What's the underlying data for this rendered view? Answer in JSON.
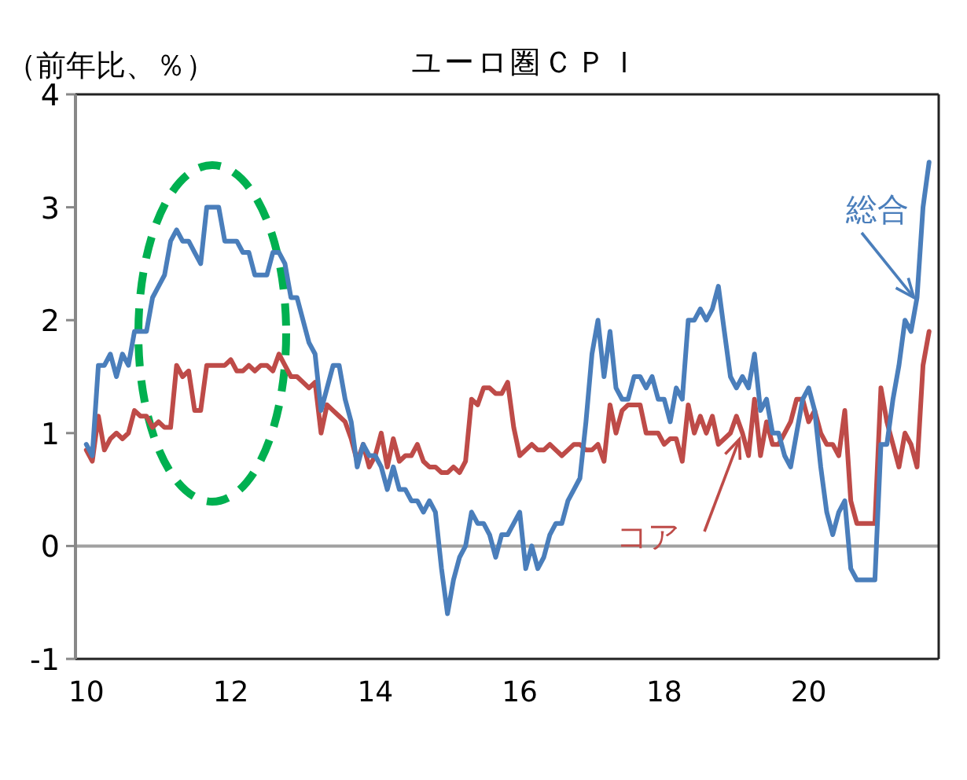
{
  "chart_data": {
    "type": "line",
    "title": "ユーロ圏ＣＰＩ",
    "ylabel": "（前年比、％）",
    "x": [
      10,
      10.083,
      10.167,
      10.25,
      10.333,
      10.417,
      10.5,
      10.583,
      10.667,
      10.75,
      10.833,
      10.917,
      11,
      11.083,
      11.167,
      11.25,
      11.333,
      11.417,
      11.5,
      11.583,
      11.667,
      11.75,
      11.833,
      11.917,
      12,
      12.083,
      12.167,
      12.25,
      12.333,
      12.417,
      12.5,
      12.583,
      12.667,
      12.75,
      12.833,
      12.917,
      13,
      13.083,
      13.167,
      13.25,
      13.333,
      13.417,
      13.5,
      13.583,
      13.667,
      13.75,
      13.833,
      13.917,
      14,
      14.083,
      14.167,
      14.25,
      14.333,
      14.417,
      14.5,
      14.583,
      14.667,
      14.75,
      14.833,
      14.917,
      15,
      15.083,
      15.167,
      15.25,
      15.333,
      15.417,
      15.5,
      15.583,
      15.667,
      15.75,
      15.833,
      15.917,
      16,
      16.083,
      16.167,
      16.25,
      16.333,
      16.417,
      16.5,
      16.583,
      16.667,
      16.75,
      16.833,
      16.917,
      17,
      17.083,
      17.167,
      17.25,
      17.333,
      17.417,
      17.5,
      17.583,
      17.667,
      17.75,
      17.833,
      17.917,
      18,
      18.083,
      18.167,
      18.25,
      18.333,
      18.417,
      18.5,
      18.583,
      18.667,
      18.75,
      18.833,
      18.917,
      19,
      19.083,
      19.167,
      19.25,
      19.333,
      19.417,
      19.5,
      19.583,
      19.667,
      19.75,
      19.833,
      19.917,
      20,
      20.083,
      20.167,
      20.25,
      20.333,
      20.417,
      20.5,
      20.583,
      20.667,
      20.75,
      20.833,
      20.917,
      21,
      21.083,
      21.167,
      21.25,
      21.333,
      21.417,
      21.5,
      21.583,
      21.667
    ],
    "series": [
      {
        "name": "総合",
        "color": "#4a7ebb",
        "values": [
          0.9,
          0.8,
          1.6,
          1.6,
          1.7,
          1.5,
          1.7,
          1.6,
          1.9,
          1.9,
          1.9,
          2.2,
          2.3,
          2.4,
          2.7,
          2.8,
          2.7,
          2.7,
          2.6,
          2.5,
          3.0,
          3.0,
          3.0,
          2.7,
          2.7,
          2.7,
          2.6,
          2.6,
          2.4,
          2.4,
          2.4,
          2.6,
          2.6,
          2.5,
          2.2,
          2.2,
          2.0,
          1.8,
          1.7,
          1.2,
          1.4,
          1.6,
          1.6,
          1.3,
          1.1,
          0.7,
          0.9,
          0.8,
          0.8,
          0.7,
          0.5,
          0.7,
          0.5,
          0.5,
          0.4,
          0.4,
          0.3,
          0.4,
          0.3,
          -0.2,
          -0.6,
          -0.3,
          -0.1,
          0.0,
          0.3,
          0.2,
          0.2,
          0.1,
          -0.1,
          0.1,
          0.1,
          0.2,
          0.3,
          -0.2,
          0.0,
          -0.2,
          -0.1,
          0.1,
          0.2,
          0.2,
          0.4,
          0.5,
          0.6,
          1.1,
          1.7,
          2.0,
          1.5,
          1.9,
          1.4,
          1.3,
          1.3,
          1.5,
          1.5,
          1.4,
          1.5,
          1.3,
          1.3,
          1.1,
          1.4,
          1.3,
          2.0,
          2.0,
          2.1,
          2.0,
          2.1,
          2.3,
          1.9,
          1.5,
          1.4,
          1.5,
          1.4,
          1.7,
          1.2,
          1.3,
          1.0,
          1.0,
          0.8,
          0.7,
          1.0,
          1.3,
          1.4,
          1.2,
          0.7,
          0.3,
          0.1,
          0.3,
          0.4,
          -0.2,
          -0.3,
          -0.3,
          -0.3,
          -0.3,
          0.9,
          0.9,
          1.3,
          1.6,
          2.0,
          1.9,
          2.2,
          3.0,
          3.4
        ]
      },
      {
        "name": "コア",
        "color": "#be4b48",
        "values": [
          0.85,
          0.75,
          1.15,
          0.85,
          0.95,
          1.0,
          0.95,
          1.0,
          1.2,
          1.15,
          1.15,
          1.05,
          1.1,
          1.05,
          1.05,
          1.6,
          1.5,
          1.55,
          1.2,
          1.2,
          1.6,
          1.6,
          1.6,
          1.6,
          1.65,
          1.55,
          1.55,
          1.6,
          1.55,
          1.6,
          1.6,
          1.55,
          1.7,
          1.6,
          1.5,
          1.5,
          1.45,
          1.4,
          1.45,
          1.0,
          1.25,
          1.2,
          1.15,
          1.1,
          0.95,
          0.75,
          0.9,
          0.7,
          0.8,
          1.0,
          0.7,
          0.95,
          0.75,
          0.8,
          0.8,
          0.9,
          0.75,
          0.7,
          0.7,
          0.65,
          0.65,
          0.7,
          0.65,
          0.75,
          1.3,
          1.25,
          1.4,
          1.4,
          1.35,
          1.35,
          1.45,
          1.05,
          0.8,
          0.85,
          0.9,
          0.85,
          0.85,
          0.9,
          0.85,
          0.8,
          0.85,
          0.9,
          0.9,
          0.85,
          0.85,
          0.9,
          0.75,
          1.25,
          1.0,
          1.2,
          1.25,
          1.25,
          1.25,
          1.0,
          1.0,
          1.0,
          0.9,
          0.95,
          0.95,
          0.75,
          1.25,
          1.0,
          1.15,
          1.0,
          1.15,
          0.9,
          0.95,
          1.0,
          1.15,
          1.0,
          0.8,
          1.3,
          0.8,
          1.1,
          0.9,
          0.9,
          1.0,
          1.1,
          1.3,
          1.3,
          1.1,
          1.2,
          1.0,
          0.9,
          0.9,
          0.8,
          1.2,
          0.4,
          0.2,
          0.2,
          0.2,
          0.2,
          1.4,
          1.1,
          0.9,
          0.7,
          1.0,
          0.9,
          0.7,
          1.6,
          1.9
        ]
      }
    ],
    "xlim": [
      9.85,
      21.8
    ],
    "xticks": [
      10,
      12,
      14,
      16,
      18,
      20
    ],
    "ylim": [
      -1,
      4
    ],
    "yticks": [
      -1,
      0,
      1,
      2,
      3,
      4
    ],
    "ref_lines": [
      {
        "axis": "y",
        "value": 0,
        "color": "#a0a0a0"
      }
    ]
  }
}
